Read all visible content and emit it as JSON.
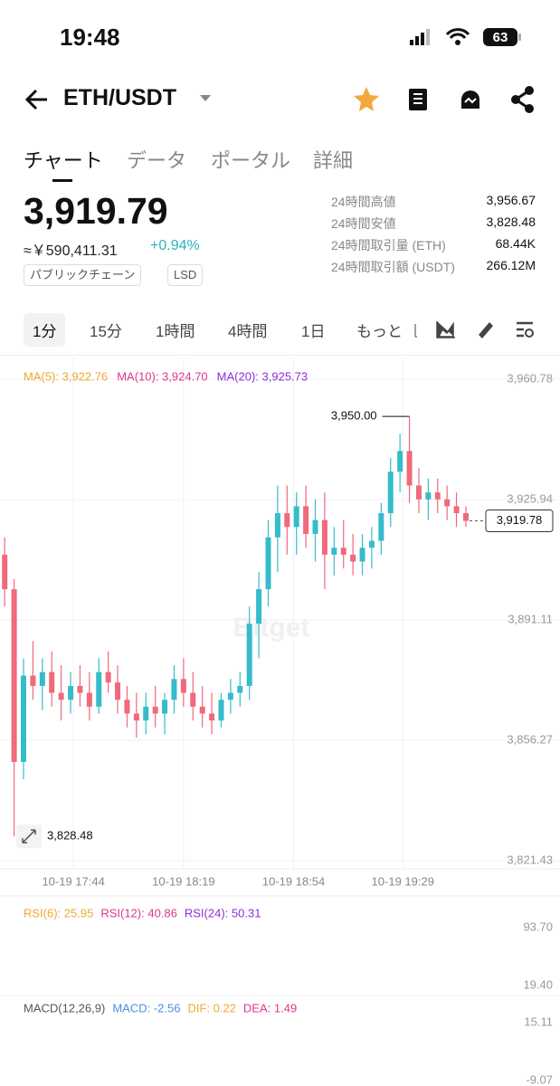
{
  "status": {
    "time": "19:48",
    "battery": "63"
  },
  "header": {
    "pair": "ETH/USDT"
  },
  "tabs": [
    "チャート",
    "データ",
    "ポータル",
    "詳細"
  ],
  "ticker": {
    "price": "3,919.79",
    "fiat": "≈￥590,411.31",
    "change": "+0.94%",
    "tags": [
      "パブリックチェーン",
      "LSD"
    ],
    "stats": [
      {
        "label": "24時間高値",
        "value": "3,956.67"
      },
      {
        "label": "24時間安値",
        "value": "3,828.48"
      },
      {
        "label": "24時間取引量 (ETH)",
        "value": "68.44K"
      },
      {
        "label": "24時間取引額 (USDT)",
        "value": "266.12M"
      }
    ]
  },
  "intervals": [
    "1分",
    "15分",
    "1時間",
    "4時間",
    "1日",
    "もっと"
  ],
  "chart_data": {
    "type": "candlestick",
    "ma_legend": [
      {
        "text": "MA(5): 3,922.76",
        "color": "#f0a830"
      },
      {
        "text": "MA(10): 3,924.70",
        "color": "#e0368f"
      },
      {
        "text": "MA(20): 3,925.73",
        "color": "#8d2fd6"
      }
    ],
    "watermark": "Bitget",
    "up_color": "#35bccb",
    "down_color": "#f0697c",
    "ylim": [
      3821.43,
      3960.78
    ],
    "yticks": [
      {
        "value": 3960.78,
        "label": "3,960.78"
      },
      {
        "value": 3925.94,
        "label": "3,925.94"
      },
      {
        "value": 3891.11,
        "label": "3,891.11"
      },
      {
        "value": 3856.27,
        "label": "3,856.27"
      },
      {
        "value": 3821.43,
        "label": "3,821.43"
      }
    ],
    "xlim": [
      -0.5,
      59
    ],
    "xticks": [
      {
        "value": 7.3,
        "label": "10-19 17:44"
      },
      {
        "value": 19,
        "label": "10-19 18:19"
      },
      {
        "value": 30.7,
        "label": "10-19 18:54"
      },
      {
        "value": 42.3,
        "label": "10-19 19:29"
      }
    ],
    "candles": [
      [
        3910,
        3915,
        3895,
        3900
      ],
      [
        3900,
        3903,
        3828.48,
        3850
      ],
      [
        3850,
        3880,
        3845,
        3875
      ],
      [
        3875,
        3885,
        3868,
        3872
      ],
      [
        3872,
        3880,
        3865,
        3876
      ],
      [
        3876,
        3882,
        3866,
        3870
      ],
      [
        3870,
        3878,
        3862,
        3868
      ],
      [
        3868,
        3876,
        3864,
        3872
      ],
      [
        3872,
        3878,
        3866,
        3870
      ],
      [
        3870,
        3876,
        3862,
        3866
      ],
      [
        3866,
        3880,
        3864,
        3876
      ],
      [
        3876,
        3882,
        3870,
        3873
      ],
      [
        3873,
        3878,
        3864,
        3868
      ],
      [
        3868,
        3872,
        3860,
        3864
      ],
      [
        3864,
        3870,
        3857,
        3862
      ],
      [
        3862,
        3870,
        3858,
        3866
      ],
      [
        3866,
        3872,
        3860,
        3864
      ],
      [
        3864,
        3870,
        3858,
        3868
      ],
      [
        3868,
        3878,
        3864,
        3874
      ],
      [
        3874,
        3880,
        3866,
        3870
      ],
      [
        3870,
        3876,
        3862,
        3866
      ],
      [
        3866,
        3872,
        3860,
        3864
      ],
      [
        3864,
        3870,
        3858,
        3862
      ],
      [
        3862,
        3870,
        3860,
        3868
      ],
      [
        3868,
        3874,
        3864,
        3870
      ],
      [
        3870,
        3876,
        3866,
        3872
      ],
      [
        3872,
        3895,
        3868,
        3890
      ],
      [
        3890,
        3905,
        3880,
        3900
      ],
      [
        3900,
        3920,
        3895,
        3915
      ],
      [
        3915,
        3930,
        3905,
        3922
      ],
      [
        3922,
        3930,
        3910,
        3918
      ],
      [
        3918,
        3928,
        3910,
        3924
      ],
      [
        3924,
        3930,
        3912,
        3916
      ],
      [
        3916,
        3926,
        3908,
        3920
      ],
      [
        3920,
        3928,
        3900,
        3910
      ],
      [
        3910,
        3918,
        3904,
        3912
      ],
      [
        3912,
        3920,
        3906,
        3910
      ],
      [
        3910,
        3916,
        3904,
        3908
      ],
      [
        3908,
        3916,
        3904,
        3912
      ],
      [
        3912,
        3918,
        3906,
        3914
      ],
      [
        3914,
        3925,
        3910,
        3922
      ],
      [
        3922,
        3938,
        3918,
        3934
      ],
      [
        3934,
        3945,
        3928,
        3940
      ],
      [
        3940,
        3950,
        3925,
        3930
      ],
      [
        3930,
        3935,
        3922,
        3926
      ],
      [
        3926,
        3932,
        3920,
        3928
      ],
      [
        3928,
        3932,
        3922,
        3926
      ],
      [
        3926,
        3930,
        3920,
        3924
      ],
      [
        3924,
        3928,
        3918,
        3922
      ],
      [
        3922,
        3924,
        3918,
        3919.78
      ]
    ],
    "high_label": {
      "value": 3950,
      "label": "3,950.00"
    },
    "low_label": {
      "value": 3828.48,
      "label": "3,828.48"
    },
    "last_label": {
      "value": 3919.78,
      "label": "3,919.78"
    },
    "rsi": {
      "legend": [
        {
          "text": "RSI(6): 25.95",
          "color": "#f0a830"
        },
        {
          "text": "RSI(12): 40.86",
          "color": "#e0368f"
        },
        {
          "text": "RSI(24): 50.31",
          "color": "#8d2fd6"
        }
      ],
      "ticks": [
        "93.70",
        "19.40"
      ]
    },
    "macd": {
      "legend": [
        {
          "text": "MACD(12,26,9)",
          "color": "#555555"
        },
        {
          "text": "MACD: -2.56",
          "color": "#4a8fe0"
        },
        {
          "text": "DIF: 0.22",
          "color": "#f0a830"
        },
        {
          "text": "DEA: 1.49",
          "color": "#e0368f"
        }
      ],
      "ticks": [
        "15.11",
        "-9.07"
      ]
    }
  }
}
